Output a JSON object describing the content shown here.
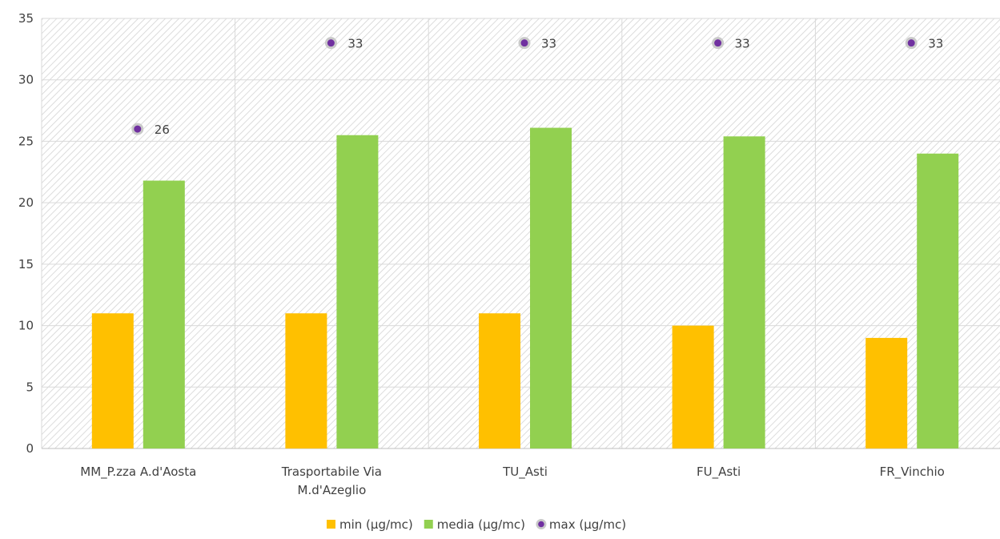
{
  "chart_data": {
    "type": "bar",
    "categories": [
      "MM_P.zza A.d'Aosta",
      "Trasportabile Via M.d'Azeglio",
      "TU_Asti",
      "FU_Asti",
      "FR_Vinchio"
    ],
    "category_lines": [
      [
        "MM_P.zza A.d'Aosta"
      ],
      [
        "Trasportabile Via",
        "M.d'Azeglio"
      ],
      [
        "TU_Asti"
      ],
      [
        "FU_Asti"
      ],
      [
        "FR_Vinchio"
      ]
    ],
    "series": [
      {
        "name": "min (µg/mc)",
        "kind": "bar",
        "color": "#ffc000",
        "values": [
          11,
          11,
          11,
          10,
          9
        ]
      },
      {
        "name": "media (µg/mc)",
        "kind": "bar",
        "color": "#92d050",
        "values": [
          21.8,
          25.5,
          26.1,
          25.4,
          24
        ]
      },
      {
        "name": "max (µg/mc)",
        "kind": "marker",
        "color": "#7030a0",
        "values": [
          26,
          33,
          33,
          33,
          33
        ],
        "labels": [
          "26",
          "33",
          "33",
          "33",
          "33"
        ]
      }
    ],
    "y_ticks": [
      "0",
      "5",
      "10",
      "15",
      "20",
      "25",
      "30",
      "35"
    ],
    "ylim": [
      0,
      35
    ],
    "grid": true,
    "plot_background": "diagonal hatch",
    "legend_position": "bottom",
    "title": "",
    "xlabel": "",
    "ylabel": ""
  }
}
